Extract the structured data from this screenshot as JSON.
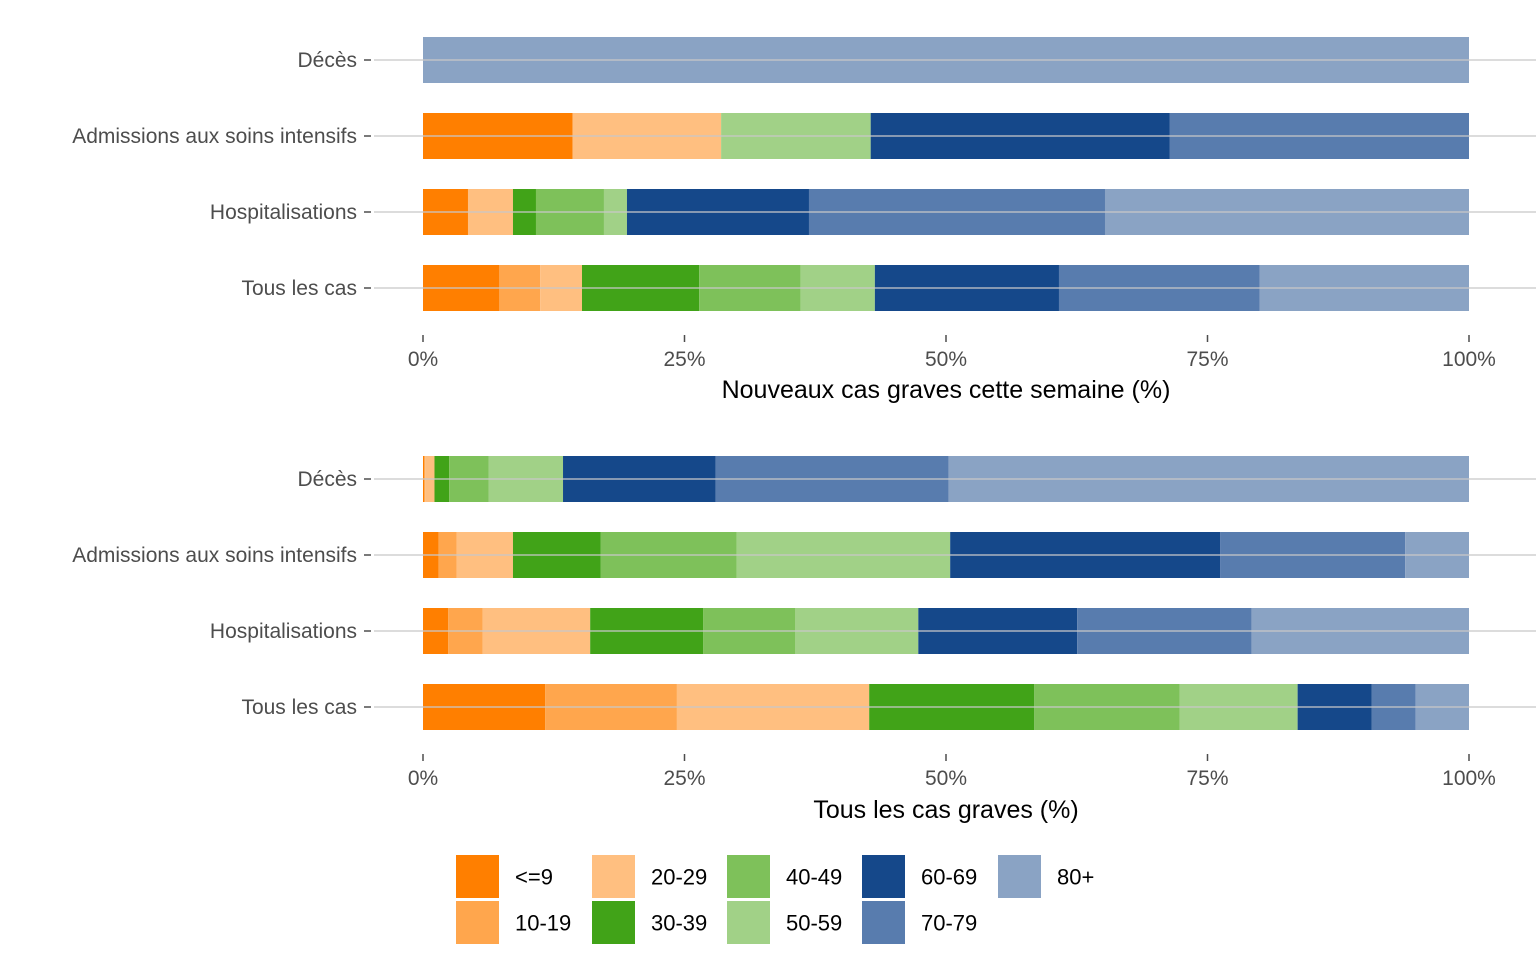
{
  "chart_data": [
    {
      "type": "bar",
      "orientation": "horizontal",
      "stacked": "percent",
      "xlabel": "Nouveaux cas graves cette semaine (%)",
      "xlim": [
        0,
        100
      ],
      "xticks": [
        "0%",
        "25%",
        "50%",
        "75%",
        "100%"
      ],
      "categories": [
        "Décès",
        "Admissions aux soins intensifs",
        "Hospitalisations",
        "Tous les cas"
      ],
      "series": [
        {
          "name": "<=9",
          "values": [
            0,
            14.3,
            4.3,
            7.3
          ]
        },
        {
          "name": "10-19",
          "values": [
            0,
            0,
            0,
            3.9
          ]
        },
        {
          "name": "20-29",
          "values": [
            0,
            14.2,
            4.3,
            4.0
          ]
        },
        {
          "name": "30-39",
          "values": [
            0,
            0,
            2.2,
            11.2
          ]
        },
        {
          "name": "40-49",
          "values": [
            0,
            0,
            6.5,
            9.7
          ]
        },
        {
          "name": "50-59",
          "values": [
            0,
            14.3,
            2.2,
            7.1
          ]
        },
        {
          "name": "60-69",
          "values": [
            0,
            28.6,
            17.4,
            17.6
          ]
        },
        {
          "name": "70-79",
          "values": [
            0,
            28.6,
            28.3,
            19.2
          ]
        },
        {
          "name": "80+",
          "values": [
            100,
            0,
            34.8,
            20.0
          ]
        }
      ]
    },
    {
      "type": "bar",
      "orientation": "horizontal",
      "stacked": "percent",
      "xlabel": "Tous les cas graves (%)",
      "xlim": [
        0,
        100
      ],
      "xticks": [
        "0%",
        "25%",
        "50%",
        "75%",
        "100%"
      ],
      "categories": [
        "Décès",
        "Admissions aux soins intensifs",
        "Hospitalisations",
        "Tous les cas"
      ],
      "series": [
        {
          "name": "<=9",
          "values": [
            0.1,
            1.5,
            2.4,
            11.7
          ]
        },
        {
          "name": "10-19",
          "values": [
            0.1,
            1.7,
            3.3,
            12.6
          ]
        },
        {
          "name": "20-29",
          "values": [
            0.9,
            5.4,
            10.3,
            18.4
          ]
        },
        {
          "name": "30-39",
          "values": [
            1.4,
            8.4,
            10.8,
            15.8
          ]
        },
        {
          "name": "40-49",
          "values": [
            3.8,
            13.0,
            8.8,
            13.9
          ]
        },
        {
          "name": "50-59",
          "values": [
            7.1,
            20.4,
            11.8,
            11.3
          ]
        },
        {
          "name": "60-69",
          "values": [
            14.6,
            25.8,
            15.2,
            7.1
          ]
        },
        {
          "name": "70-79",
          "values": [
            22.3,
            17.7,
            16.7,
            4.2
          ]
        },
        {
          "name": "80+",
          "values": [
            49.8,
            6.1,
            20.8,
            5.1
          ]
        }
      ]
    }
  ],
  "legend": {
    "position": "bottom",
    "items": [
      {
        "label": "<=9",
        "color": "#ff7f00"
      },
      {
        "label": "10-19",
        "color": "#ffa64d"
      },
      {
        "label": "20-29",
        "color": "#ffbf80"
      },
      {
        "label": "30-39",
        "color": "#41a318"
      },
      {
        "label": "40-49",
        "color": "#7ec15a"
      },
      {
        "label": "50-59",
        "color": "#a1d187"
      },
      {
        "label": "60-69",
        "color": "#15488a"
      },
      {
        "label": "70-79",
        "color": "#587cae"
      },
      {
        "label": "80+",
        "color": "#8aa3c4"
      }
    ]
  },
  "style": {
    "gridline_color": "#c8c8c8",
    "tick_color": "#4d4d4d",
    "background": "#ffffff"
  }
}
